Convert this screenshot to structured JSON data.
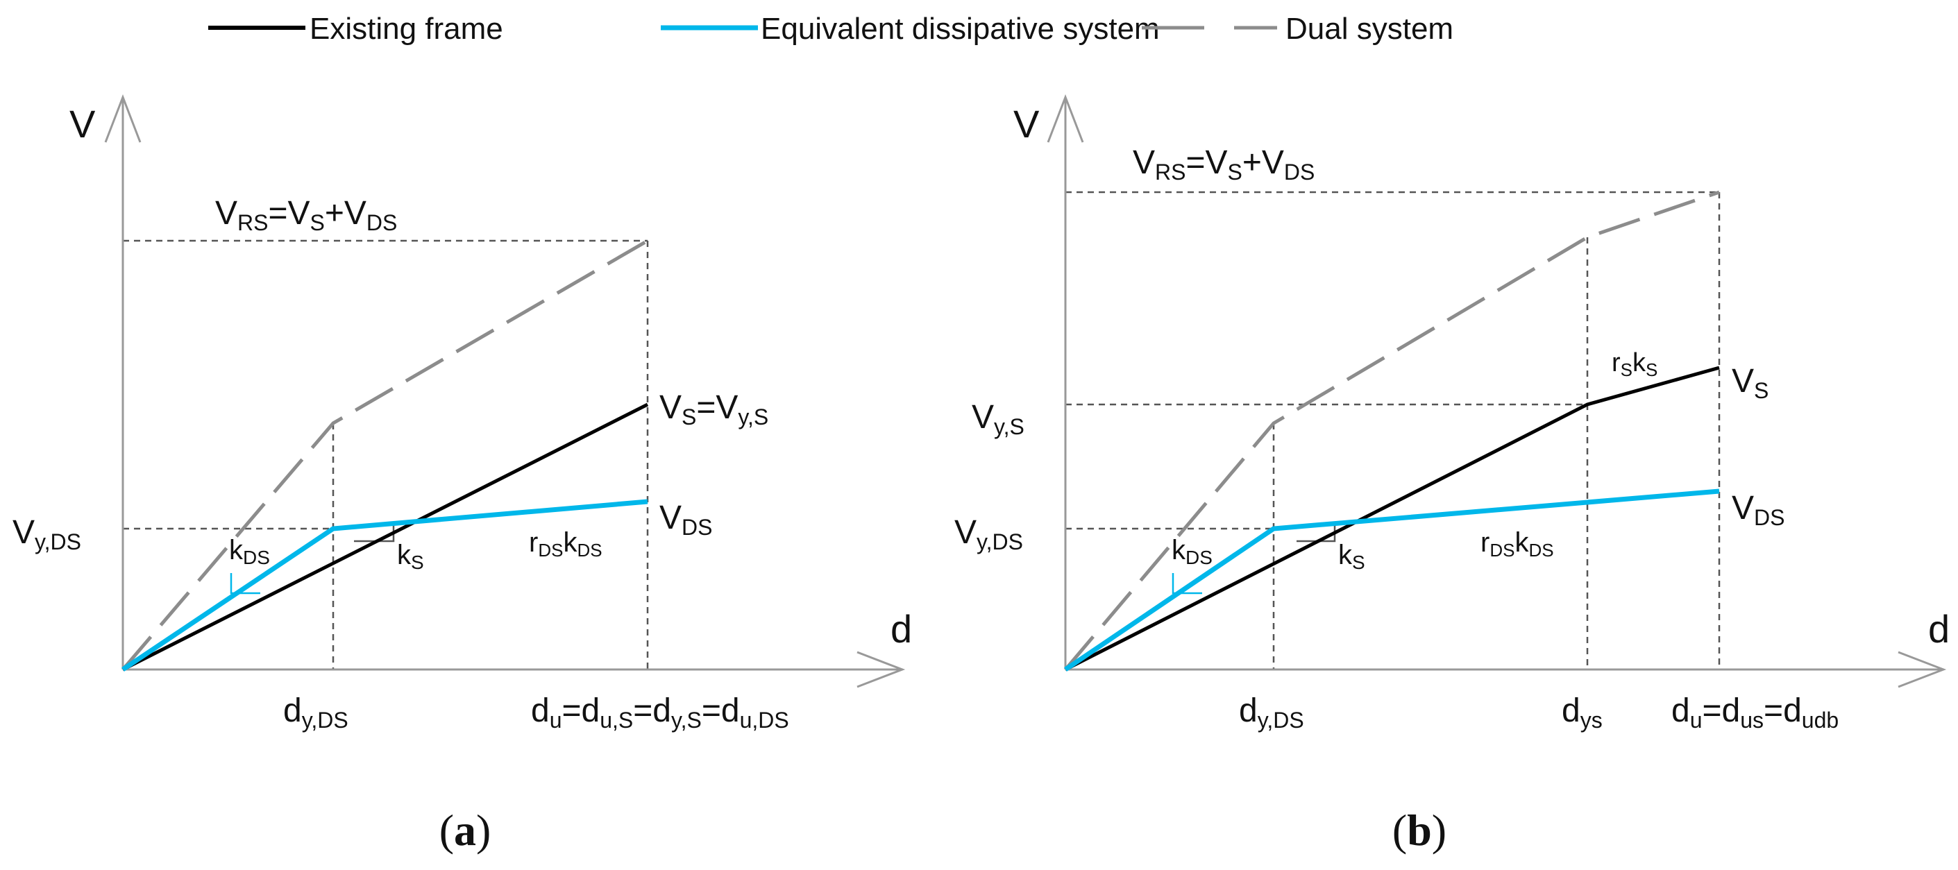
{
  "colors": {
    "existing_frame": "#000000",
    "equivalent_dissipative": "#00b7ea",
    "dual_system": "#8c8c8c",
    "axis": "#999999",
    "guide": "#555555"
  },
  "legend": {
    "existing_frame": "Existing frame",
    "equivalent_dissipative": "Equivalent dissipative system",
    "dual_system": "Dual system"
  },
  "panels": [
    {
      "caption": {
        "open": "(",
        "letter": "a",
        "close": ")"
      },
      "axis": {
        "y": "V",
        "x": "d"
      },
      "sum_label": {
        "base": "V",
        "sub1": "RS",
        "eq": "=V",
        "sub2": "S",
        "plus": "+V",
        "sub3": "DS"
      },
      "vs_label": {
        "a": "V",
        "a_sub": "S",
        "eq": "=V",
        "b_sub": "y,S"
      },
      "vds_label": {
        "base": "V",
        "sub": "DS"
      },
      "vyds_label": {
        "base": "V",
        "sub": "y,DS"
      },
      "kds_label": {
        "base": "k",
        "sub": "DS"
      },
      "ks_label": {
        "base": "k",
        "sub": "S"
      },
      "rdskds_label": {
        "r": "r",
        "r_sub": "DS",
        "k": "k",
        "k_sub": "DS"
      },
      "dyds_label": {
        "base": "d",
        "sub": "y,DS"
      },
      "du_label": {
        "p1": "d",
        "s1": "u",
        "p2": "=d",
        "s2": "u,S",
        "p3": "=d",
        "s3": "y,S",
        "p4": "=d",
        "s4": "u,DS"
      }
    },
    {
      "caption": {
        "open": "(",
        "letter": "b",
        "close": ")"
      },
      "axis": {
        "y": "V",
        "x": "d"
      },
      "sum_label": {
        "base": "V",
        "sub1": "RS",
        "eq": "=V",
        "sub2": "S",
        "plus": "+V",
        "sub3": "DS"
      },
      "vys_label": {
        "base": "V",
        "sub": "y,S"
      },
      "vs_label": {
        "base": "V",
        "sub": "S"
      },
      "rsks_label": {
        "r": "r",
        "r_sub": "S",
        "k": "k",
        "k_sub": "S"
      },
      "vds_label": {
        "base": "V",
        "sub": "DS"
      },
      "vyds_label": {
        "base": "V",
        "sub": "y,DS"
      },
      "kds_label": {
        "base": "k",
        "sub": "DS"
      },
      "ks_label": {
        "base": "k",
        "sub": "S"
      },
      "rdskds_label": {
        "r": "r",
        "r_sub": "DS",
        "k": "k",
        "k_sub": "DS"
      },
      "dyds_label": {
        "base": "d",
        "sub": "y,DS"
      },
      "dys_label": {
        "base": "d",
        "sub": "ys"
      },
      "du_label": {
        "p1": "d",
        "s1": "u",
        "p2": "=d",
        "s2": "us",
        "p3": "=d",
        "s3": "udb"
      }
    }
  ]
}
